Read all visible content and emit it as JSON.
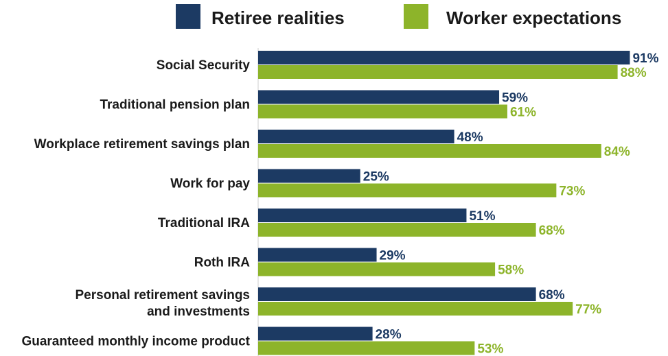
{
  "legend": {
    "series_a": "Retiree realities",
    "series_b": "Worker expectations"
  },
  "colors": {
    "retiree": "#1c3a63",
    "worker": "#8db42a",
    "text": "#1a1a1a",
    "baseline": "#cccccc"
  },
  "chart_data": {
    "type": "bar",
    "orientation": "horizontal",
    "categories": [
      "Social Security",
      "Traditional pension plan",
      "Workplace retirement savings plan",
      "Work for pay",
      "Traditional IRA",
      "Roth IRA",
      "Personal retirement savings and investments",
      "Guaranteed monthly income product"
    ],
    "series": [
      {
        "name": "Retiree realities",
        "values": [
          91,
          59,
          48,
          25,
          51,
          29,
          68,
          28
        ]
      },
      {
        "name": "Worker expectations",
        "values": [
          88,
          61,
          84,
          73,
          68,
          58,
          77,
          53
        ]
      }
    ],
    "value_suffix": "%",
    "xlim": [
      0,
      100
    ],
    "legend_position": "top",
    "grid": false
  }
}
